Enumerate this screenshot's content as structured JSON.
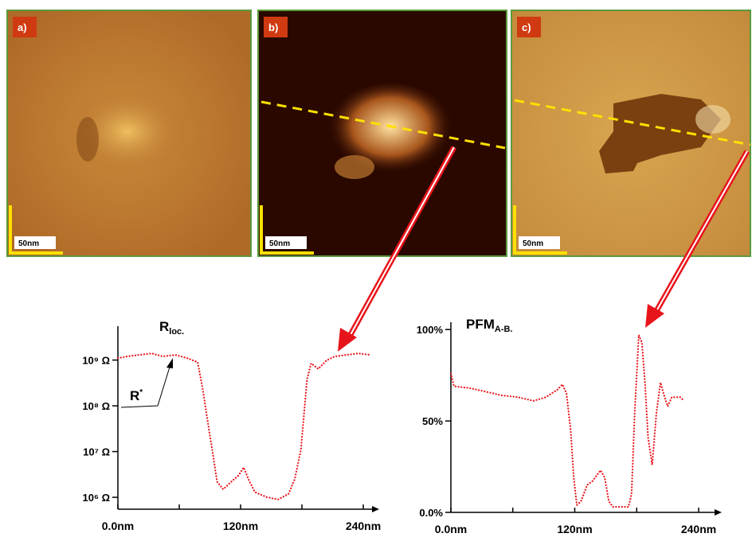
{
  "panels": [
    {
      "label": "a)",
      "scale": "50nm"
    },
    {
      "label": "b)",
      "scale": "50nm"
    },
    {
      "label": "c)",
      "scale": "50nm"
    }
  ],
  "chart_data": [
    {
      "type": "line",
      "title": "R",
      "title_subscript": "loc.",
      "annotation": "R",
      "annotation_superscript": "*",
      "log_scale_y": true,
      "color": "#e8141b",
      "xlim": [
        0,
        247
      ],
      "xticks": [
        {
          "value": 0,
          "label": "0.0nm"
        },
        {
          "value": 120,
          "label": "120nm"
        },
        {
          "value": 240,
          "label": "240nm"
        }
      ],
      "xminor": [
        60,
        180
      ],
      "ylim": [
        550000,
        5500000000
      ],
      "yticks": [
        {
          "value": 1000000,
          "label": "10⁶ Ω"
        },
        {
          "value": 10000000,
          "label": "10⁷ Ω"
        },
        {
          "value": 100000000,
          "label": "10⁸ Ω"
        },
        {
          "value": 1000000000,
          "label": "10⁹ Ω"
        }
      ],
      "x": [
        0,
        9,
        21,
        33,
        44,
        56,
        68,
        78,
        83,
        89,
        94,
        97,
        103,
        111,
        118,
        123,
        128,
        134,
        146,
        157,
        167,
        173,
        179,
        185,
        189,
        196,
        204,
        212,
        224,
        235,
        247
      ],
      "values": [
        1100000000,
        1200000000,
        1300000000,
        1400000000,
        1200000000,
        1300000000,
        1100000000,
        900000000,
        230000000,
        31000000,
        6200000,
        2200000,
        1500000,
        2200000,
        3000000,
        4500000,
        2400000,
        1300000,
        1000000,
        900000,
        1200000,
        2500000,
        11000000,
        380000000,
        850000000,
        640000000,
        980000000,
        1200000000,
        1300000000,
        1400000000,
        1300000000
      ]
    },
    {
      "type": "line",
      "title": "PFM",
      "title_subscript": "A-B.",
      "color": "#e8141b",
      "xlim": [
        0,
        250
      ],
      "xticks": [
        {
          "value": 0,
          "label": "0.0nm"
        },
        {
          "value": 120,
          "label": "120nm"
        },
        {
          "value": 240,
          "label": "240nm"
        }
      ],
      "xminor": [
        60,
        180
      ],
      "ylim": [
        0,
        104
      ],
      "yticks": [
        {
          "value": 0,
          "label": "0.0%"
        },
        {
          "value": 50,
          "label": "50%"
        },
        {
          "value": 100,
          "label": "100%"
        }
      ],
      "x": [
        0,
        3,
        18,
        34,
        49,
        65,
        80,
        92,
        103,
        108,
        112,
        116,
        119,
        122,
        126,
        132,
        137,
        145,
        149,
        153,
        157,
        164,
        172,
        175,
        178,
        182,
        185,
        188,
        191,
        195,
        199,
        203,
        206,
        210,
        214,
        218,
        222,
        226
      ],
      "values": [
        76,
        69,
        68,
        66,
        64,
        63,
        61,
        63,
        67,
        70,
        65,
        45,
        19,
        4,
        6,
        15,
        17,
        23,
        19,
        6,
        3,
        3,
        3,
        10,
        54,
        97,
        93,
        71,
        41,
        26,
        54,
        71,
        65,
        58,
        63,
        63,
        63,
        61
      ]
    }
  ]
}
